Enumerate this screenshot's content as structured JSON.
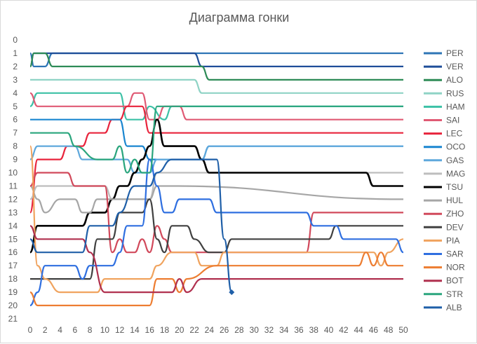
{
  "chart_data": {
    "type": "line",
    "title": "Диаграмма гонки",
    "xlabel": "",
    "ylabel": "",
    "x_range": [
      0,
      50
    ],
    "y_range": [
      0,
      21
    ],
    "y_inverted": true,
    "grid": false,
    "legend_position": "right",
    "x_ticks": [
      0,
      2,
      4,
      6,
      8,
      10,
      12,
      14,
      16,
      18,
      20,
      22,
      24,
      26,
      28,
      30,
      32,
      34,
      36,
      38,
      40,
      42,
      44,
      46,
      48,
      50
    ],
    "y_ticks": [
      0,
      1,
      2,
      3,
      4,
      5,
      6,
      7,
      8,
      9,
      10,
      11,
      12,
      13,
      14,
      15,
      16,
      17,
      18,
      19,
      20,
      21
    ],
    "series": [
      {
        "name": "PER",
        "color": "#2e75b6",
        "points": [
          [
            0,
            1
          ],
          [
            0.5,
            2
          ],
          [
            2,
            2
          ],
          [
            3,
            1
          ],
          [
            50,
            1
          ]
        ]
      },
      {
        "name": "VER",
        "color": "#1f4e99",
        "points": [
          [
            0,
            2
          ],
          [
            0.5,
            1
          ],
          [
            22,
            1
          ],
          [
            23,
            2
          ],
          [
            50,
            2
          ]
        ]
      },
      {
        "name": "ALO",
        "color": "#2e8b57",
        "points": [
          [
            0,
            2
          ],
          [
            0.5,
            1
          ],
          [
            2,
            1
          ],
          [
            3,
            2
          ],
          [
            23,
            2
          ],
          [
            24,
            3
          ],
          [
            50,
            3
          ]
        ]
      },
      {
        "name": "RUS",
        "color": "#8fd3c5",
        "points": [
          [
            0,
            3
          ],
          [
            22,
            3
          ],
          [
            23,
            4
          ],
          [
            50,
            4
          ]
        ]
      },
      {
        "name": "HAM",
        "color": "#3cc1a6",
        "points": [
          [
            0,
            5
          ],
          [
            1,
            4
          ],
          [
            12,
            4
          ],
          [
            13,
            6
          ],
          [
            15,
            6
          ],
          [
            16,
            5
          ],
          [
            18,
            6
          ],
          [
            19,
            5
          ],
          [
            50,
            5
          ]
        ]
      },
      {
        "name": "SAI",
        "color": "#e05a74",
        "points": [
          [
            0,
            4
          ],
          [
            1,
            5
          ],
          [
            13,
            5
          ],
          [
            14,
            4
          ],
          [
            15,
            4
          ],
          [
            16,
            6
          ],
          [
            17,
            6
          ],
          [
            18,
            5
          ],
          [
            20,
            5
          ],
          [
            21,
            6
          ],
          [
            50,
            6
          ]
        ]
      },
      {
        "name": "LEC",
        "color": "#e8243c",
        "points": [
          [
            0,
            13
          ],
          [
            1,
            9
          ],
          [
            4,
            9
          ],
          [
            5,
            8
          ],
          [
            7,
            8
          ],
          [
            8,
            7
          ],
          [
            10,
            7
          ],
          [
            11,
            6
          ],
          [
            12,
            6
          ],
          [
            13,
            5
          ],
          [
            15,
            5
          ],
          [
            16,
            7
          ],
          [
            50,
            7
          ]
        ]
      },
      {
        "name": "OCO",
        "color": "#1a86d0",
        "points": [
          [
            0,
            6
          ],
          [
            12,
            6
          ],
          [
            13,
            8
          ],
          [
            15,
            8
          ],
          [
            16,
            9
          ],
          [
            23,
            9
          ],
          [
            24,
            8
          ],
          [
            50,
            8
          ]
        ]
      },
      {
        "name": "GAS",
        "color": "#5fa8dc",
        "points": [
          [
            0,
            9
          ],
          [
            1,
            8
          ],
          [
            6,
            8
          ],
          [
            7,
            9
          ],
          [
            13,
            9
          ],
          [
            14,
            10
          ],
          [
            16,
            10
          ],
          [
            17,
            9
          ],
          [
            23,
            9
          ],
          [
            24,
            8
          ],
          [
            50,
            8
          ]
        ]
      },
      {
        "name": "MAG",
        "color": "#bdbdbd",
        "points": [
          [
            0,
            12
          ],
          [
            1,
            11
          ],
          [
            10,
            11
          ],
          [
            11,
            12
          ],
          [
            16,
            12
          ],
          [
            17,
            10
          ],
          [
            24,
            10
          ],
          [
            25,
            10
          ],
          [
            45,
            10
          ],
          [
            46,
            10
          ],
          [
            50,
            10
          ]
        ]
      },
      {
        "name": "TSU",
        "color": "#000000",
        "points": [
          [
            0,
            16
          ],
          [
            1,
            14
          ],
          [
            7,
            14
          ],
          [
            8,
            13
          ],
          [
            10,
            13
          ],
          [
            11,
            12
          ],
          [
            12,
            11
          ],
          [
            13,
            11
          ],
          [
            14,
            10
          ],
          [
            15,
            9
          ],
          [
            16,
            8
          ],
          [
            17,
            6
          ],
          [
            18,
            8
          ],
          [
            22,
            8
          ],
          [
            23,
            9
          ],
          [
            24,
            10
          ],
          [
            45,
            10
          ],
          [
            46,
            11
          ],
          [
            50,
            11
          ]
        ]
      },
      {
        "name": "HUL",
        "color": "#a6a6a6",
        "points": [
          [
            0,
            11
          ],
          [
            1,
            12
          ],
          [
            2,
            13
          ],
          [
            4,
            12
          ],
          [
            6,
            12
          ],
          [
            7,
            13
          ],
          [
            8,
            13
          ],
          [
            9,
            12
          ],
          [
            16,
            12
          ],
          [
            17,
            11
          ],
          [
            18,
            11
          ],
          [
            19,
            11
          ],
          [
            50,
            12
          ]
        ]
      },
      {
        "name": "ZHO",
        "color": "#d1495b",
        "points": [
          [
            0,
            11
          ],
          [
            1,
            10
          ],
          [
            5,
            10
          ],
          [
            6,
            11
          ],
          [
            10,
            11
          ],
          [
            11,
            16
          ],
          [
            12,
            15
          ],
          [
            13,
            16
          ],
          [
            14,
            16
          ],
          [
            15,
            15
          ],
          [
            16,
            16
          ],
          [
            17,
            14
          ],
          [
            18,
            15
          ],
          [
            19,
            16
          ],
          [
            37,
            16
          ],
          [
            38,
            13
          ],
          [
            50,
            13
          ]
        ]
      },
      {
        "name": "DEV",
        "color": "#404040",
        "points": [
          [
            0,
            18
          ],
          [
            8,
            18
          ],
          [
            9,
            15
          ],
          [
            11,
            15
          ],
          [
            12,
            13
          ],
          [
            15,
            13
          ],
          [
            16,
            12
          ],
          [
            17,
            15
          ],
          [
            18,
            16
          ],
          [
            19,
            14
          ],
          [
            21,
            14
          ],
          [
            22,
            15
          ],
          [
            24,
            16
          ],
          [
            26,
            16
          ],
          [
            27,
            15
          ],
          [
            40,
            15
          ],
          [
            41,
            14
          ],
          [
            50,
            14
          ]
        ]
      },
      {
        "name": "PIA",
        "color": "#f0a35e",
        "points": [
          [
            0,
            8
          ],
          [
            1,
            17
          ],
          [
            2,
            18
          ],
          [
            4,
            19
          ],
          [
            9,
            19
          ],
          [
            10,
            18
          ],
          [
            16,
            18
          ],
          [
            17,
            17
          ],
          [
            19,
            16
          ],
          [
            22,
            16
          ],
          [
            23,
            17
          ],
          [
            25,
            17
          ],
          [
            26,
            16
          ],
          [
            46,
            16
          ],
          [
            47,
            17
          ],
          [
            48,
            16
          ],
          [
            50,
            15
          ]
        ]
      },
      {
        "name": "SAR",
        "color": "#2f6fe0",
        "points": [
          [
            0,
            20
          ],
          [
            1,
            19
          ],
          [
            2,
            17
          ],
          [
            6,
            17
          ],
          [
            7,
            18
          ],
          [
            8,
            17
          ],
          [
            11,
            17
          ],
          [
            12,
            16
          ],
          [
            13,
            14
          ],
          [
            15,
            14
          ],
          [
            16,
            9
          ],
          [
            17,
            11
          ],
          [
            18,
            13
          ],
          [
            19,
            13
          ],
          [
            20,
            12
          ],
          [
            24,
            12
          ],
          [
            25,
            13
          ],
          [
            37,
            13
          ],
          [
            38,
            14
          ],
          [
            41,
            14
          ],
          [
            42,
            15
          ],
          [
            49,
            15
          ],
          [
            50,
            16
          ]
        ]
      },
      {
        "name": "NOR",
        "color": "#ed7d31",
        "points": [
          [
            0,
            19
          ],
          [
            1,
            20
          ],
          [
            2,
            20
          ],
          [
            3,
            20
          ],
          [
            16,
            20
          ],
          [
            17,
            18
          ],
          [
            19,
            18
          ],
          [
            20,
            19
          ],
          [
            21,
            18
          ],
          [
            25,
            17
          ],
          [
            26,
            17
          ],
          [
            44,
            17
          ],
          [
            45,
            16
          ],
          [
            46,
            17
          ],
          [
            47,
            16
          ],
          [
            48,
            17
          ],
          [
            50,
            17
          ]
        ]
      },
      {
        "name": "BOT",
        "color": "#b0304f",
        "points": [
          [
            0,
            14
          ],
          [
            1,
            15
          ],
          [
            7,
            15
          ],
          [
            8,
            16
          ],
          [
            10,
            19
          ],
          [
            12,
            19
          ],
          [
            19,
            19
          ],
          [
            20,
            18
          ],
          [
            21,
            19
          ],
          [
            23,
            18
          ],
          [
            24,
            18
          ],
          [
            50,
            18
          ]
        ]
      },
      {
        "name": "STR",
        "color": "#2aa57d",
        "points": [
          [
            0,
            7
          ],
          [
            5,
            7
          ],
          [
            6,
            8
          ],
          [
            9,
            9
          ],
          [
            11,
            9
          ],
          [
            12,
            8
          ],
          [
            13,
            10
          ],
          [
            14,
            9
          ],
          [
            15,
            10
          ],
          [
            16,
            10
          ],
          [
            17,
            5
          ],
          [
            18,
            5
          ],
          [
            19,
            5
          ],
          [
            50,
            5
          ]
        ]
      },
      {
        "name": "ALB",
        "color": "#1f5fa8",
        "points": [
          [
            0,
            15
          ],
          [
            1,
            16
          ],
          [
            7,
            16
          ],
          [
            8,
            14
          ],
          [
            11,
            14
          ],
          [
            12,
            13
          ],
          [
            14,
            11
          ],
          [
            16,
            11
          ],
          [
            17,
            10
          ],
          [
            19,
            9
          ],
          [
            25,
            9
          ],
          [
            26,
            15
          ],
          [
            27,
            19
          ]
        ]
      }
    ]
  }
}
